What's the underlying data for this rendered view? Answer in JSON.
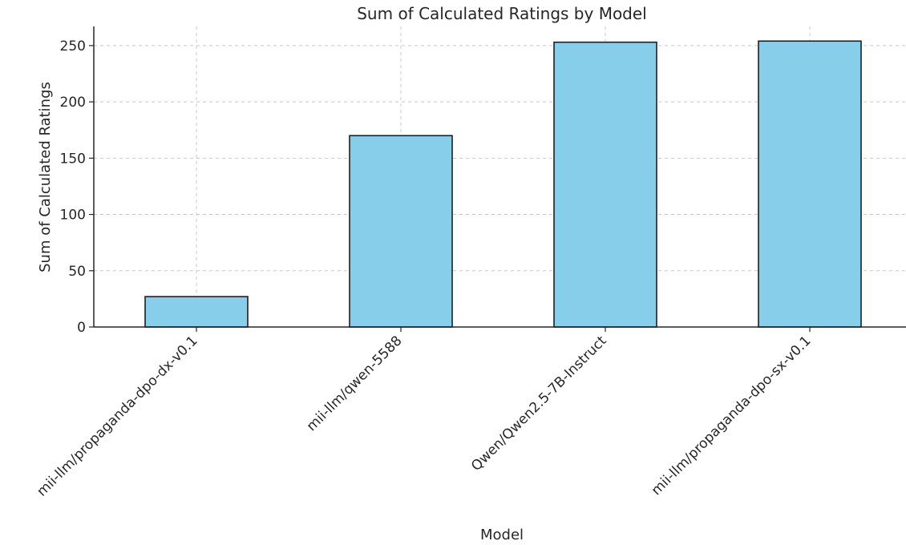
{
  "chart_data": {
    "type": "bar",
    "title": "Sum of Calculated Ratings by Model",
    "xlabel": "Model",
    "ylabel": "Sum of Calculated Ratings",
    "categories": [
      "mii-llm/propaganda-dpo-dx-v0.1",
      "mii-llm/qwen-5588",
      "Qwen/Qwen2.5-7B-Instruct",
      "mii-llm/propaganda-dpo-sx-v0.1"
    ],
    "values": [
      27,
      170,
      253,
      254
    ],
    "ylim": [
      0,
      267
    ],
    "yticks": [
      0,
      50,
      100,
      150,
      200,
      250
    ],
    "grid": true,
    "bar_color": "#87CEEB",
    "bar_edge_color": "#1f1f1f",
    "legend": false
  }
}
